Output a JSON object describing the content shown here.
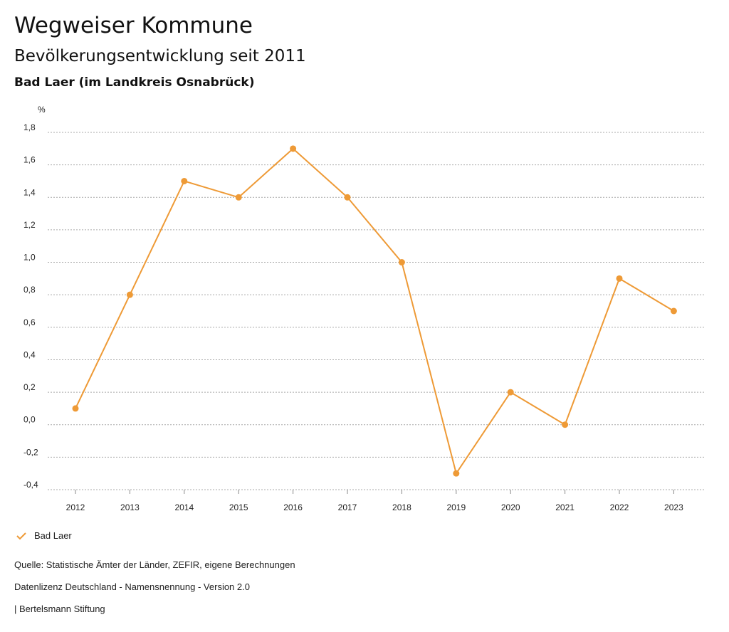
{
  "header": {
    "title": "Wegweiser Kommune",
    "subtitle": "Bevölkerungsentwicklung seit 2011",
    "region": "Bad Laer (im Landkreis Osnabrück)"
  },
  "chart_data": {
    "type": "line",
    "title": "Bevölkerungsentwicklung seit 2011",
    "ylabel": "%",
    "xlabel": "",
    "categories": [
      "2012",
      "2013",
      "2014",
      "2015",
      "2016",
      "2017",
      "2018",
      "2019",
      "2020",
      "2021",
      "2022",
      "2023"
    ],
    "series": [
      {
        "name": "Bad Laer",
        "color": "#ee9a36",
        "values": [
          0.1,
          0.8,
          1.5,
          1.4,
          1.7,
          1.4,
          1.0,
          -0.3,
          0.2,
          0.0,
          0.9,
          0.7
        ]
      }
    ],
    "ylim": [
      -0.4,
      1.8
    ],
    "yticks": [
      -0.4,
      -0.2,
      0.0,
      0.2,
      0.4,
      0.6,
      0.8,
      1.0,
      1.2,
      1.4,
      1.6,
      1.8
    ],
    "ytick_labels": [
      "-0,4",
      "-0,2",
      "0,0",
      "0,2",
      "0,4",
      "0,6",
      "0,8",
      "1,0",
      "1,2",
      "1,4",
      "1,6",
      "1,8"
    ],
    "grid": true,
    "legend": "bottom-left"
  },
  "legend": {
    "label": "Bad Laer",
    "icon": "check-icon",
    "color": "#ee9a36"
  },
  "footer": {
    "source": "Quelle: Statistische Ämter der Länder, ZEFIR, eigene Berechnungen",
    "license": "Datenlizenz Deutschland - Namensnennung - Version 2.0",
    "publisher": "| Bertelsmann Stiftung"
  }
}
